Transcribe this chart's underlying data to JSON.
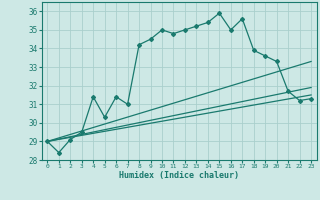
{
  "xlabel": "Humidex (Indice chaleur)",
  "background_color": "#cde8e5",
  "grid_color": "#aacfcc",
  "line_color": "#1a7a6e",
  "xlim": [
    -0.5,
    23.5
  ],
  "ylim": [
    28,
    36.5
  ],
  "xticks": [
    0,
    1,
    2,
    3,
    4,
    5,
    6,
    7,
    8,
    9,
    10,
    11,
    12,
    13,
    14,
    15,
    16,
    17,
    18,
    19,
    20,
    21,
    22,
    23
  ],
  "yticks": [
    28,
    29,
    30,
    31,
    32,
    33,
    34,
    35,
    36
  ],
  "main_line_x": [
    0,
    1,
    2,
    3,
    4,
    5,
    6,
    7,
    8,
    9,
    10,
    11,
    12,
    13,
    14,
    15,
    16,
    17,
    18,
    19,
    20,
    21,
    22,
    23
  ],
  "main_line_y": [
    29.0,
    28.4,
    29.1,
    29.5,
    31.4,
    30.3,
    31.4,
    31.0,
    34.2,
    34.5,
    35.0,
    34.8,
    35.0,
    35.2,
    35.4,
    35.9,
    35.0,
    35.6,
    33.9,
    33.6,
    33.3,
    31.7,
    31.2,
    31.3
  ],
  "line2_x": [
    0,
    23
  ],
  "line2_y": [
    29.0,
    33.3
  ],
  "line3_x": [
    0,
    23
  ],
  "line3_y": [
    29.0,
    31.5
  ],
  "line4_x": [
    0,
    23
  ],
  "line4_y": [
    29.0,
    31.9
  ]
}
